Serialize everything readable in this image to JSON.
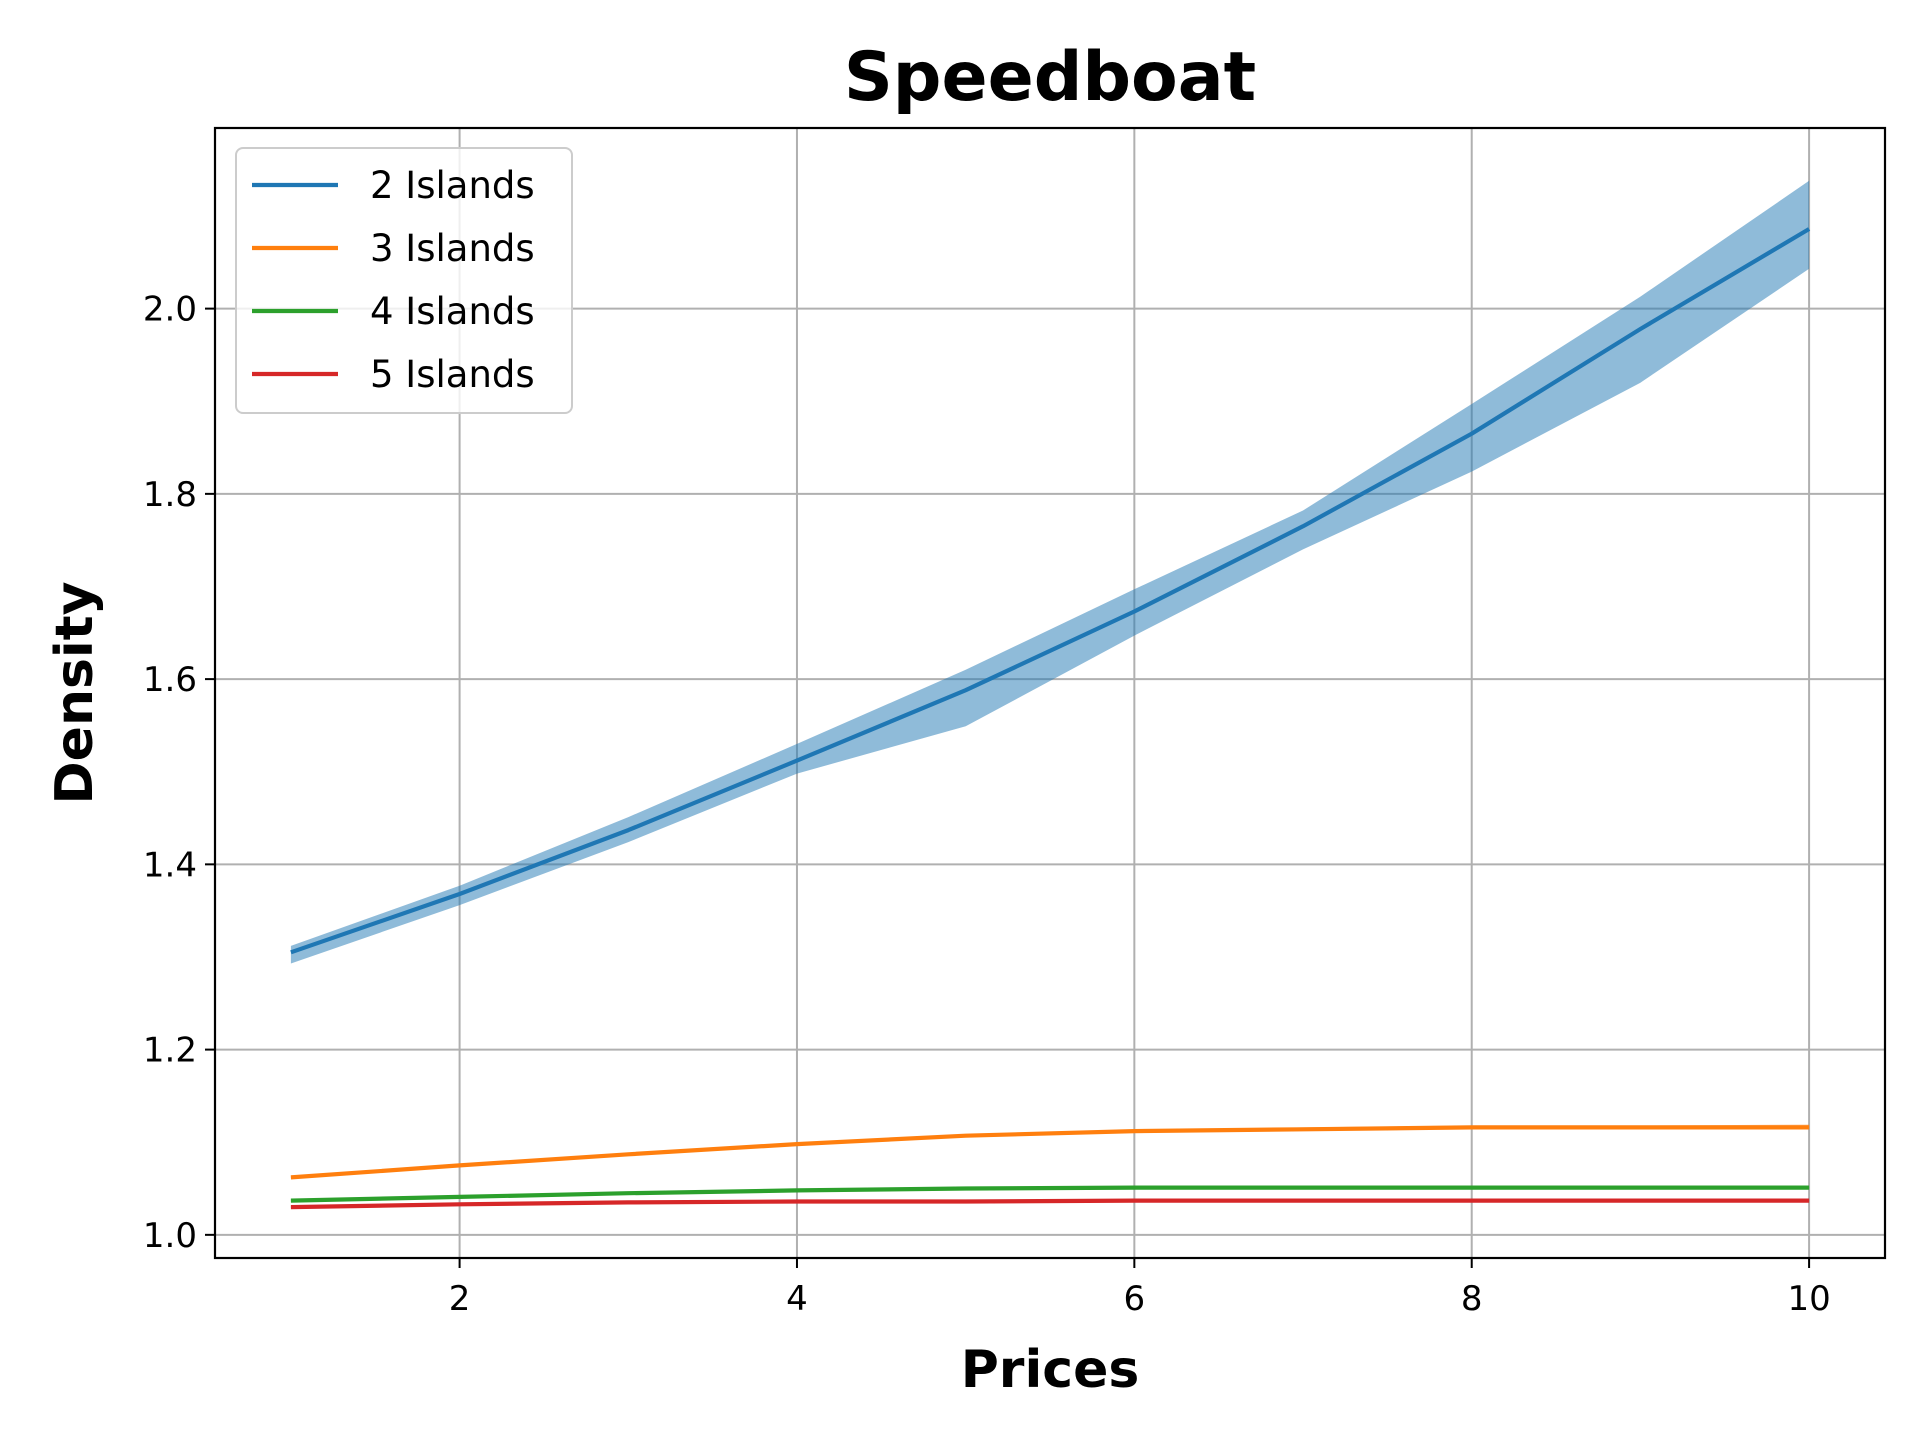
{
  "chart_data": {
    "type": "line",
    "title": "Speedboat",
    "xlabel": "Prices",
    "ylabel": "Density",
    "x": [
      1,
      2,
      3,
      4,
      5,
      6,
      7,
      8,
      9,
      10
    ],
    "xlim": [
      0.55,
      10.45
    ],
    "ylim": [
      0.975,
      2.195
    ],
    "xticks": [
      2,
      4,
      6,
      8,
      10
    ],
    "yticks": [
      1.0,
      1.2,
      1.4,
      1.6,
      1.8,
      2.0
    ],
    "xtick_labels": [
      "2",
      "4",
      "6",
      "8",
      "10"
    ],
    "ytick_labels": [
      "1.0",
      "1.2",
      "1.4",
      "1.6",
      "1.8",
      "2.0"
    ],
    "grid": true,
    "legend_position": "top-left",
    "series": [
      {
        "name": "2 Islands",
        "color": "#1f77b4",
        "band_color": "#1f77b4",
        "values": [
          1.305,
          1.368,
          1.437,
          1.512,
          1.588,
          1.673,
          1.765,
          1.865,
          1.978,
          2.086
        ],
        "lower": [
          1.293,
          1.356,
          1.424,
          1.498,
          1.549,
          1.647,
          1.74,
          1.824,
          1.92,
          2.043
        ],
        "upper": [
          1.312,
          1.377,
          1.451,
          1.53,
          1.61,
          1.697,
          1.782,
          1.897,
          2.013,
          2.138
        ]
      },
      {
        "name": "3 Islands",
        "color": "#ff7f0e",
        "band_color": "#ff7f0e",
        "values": [
          1.062,
          1.075,
          1.087,
          1.098,
          1.107,
          1.112,
          1.114,
          1.116,
          1.116,
          1.116
        ],
        "lower": [
          1.061,
          1.074,
          1.086,
          1.097,
          1.106,
          1.111,
          1.113,
          1.115,
          1.115,
          1.114
        ],
        "upper": [
          1.063,
          1.076,
          1.088,
          1.099,
          1.108,
          1.113,
          1.116,
          1.118,
          1.118,
          1.119
        ]
      },
      {
        "name": "4 Islands",
        "color": "#2ca02c",
        "band_color": "#2ca02c",
        "values": [
          1.037,
          1.041,
          1.045,
          1.048,
          1.05,
          1.051,
          1.051,
          1.051,
          1.051,
          1.051
        ],
        "lower": [
          1.036,
          1.04,
          1.044,
          1.047,
          1.049,
          1.05,
          1.05,
          1.05,
          1.05,
          1.05
        ],
        "upper": [
          1.038,
          1.042,
          1.046,
          1.049,
          1.051,
          1.052,
          1.052,
          1.052,
          1.052,
          1.052
        ]
      },
      {
        "name": "5 Islands",
        "color": "#d62728",
        "band_color": "#d62728",
        "values": [
          1.03,
          1.033,
          1.035,
          1.036,
          1.036,
          1.037,
          1.037,
          1.037,
          1.037,
          1.037
        ],
        "lower": [
          1.029,
          1.032,
          1.034,
          1.035,
          1.035,
          1.036,
          1.036,
          1.036,
          1.036,
          1.036
        ],
        "upper": [
          1.031,
          1.034,
          1.036,
          1.037,
          1.037,
          1.038,
          1.038,
          1.038,
          1.038,
          1.038
        ]
      }
    ]
  }
}
